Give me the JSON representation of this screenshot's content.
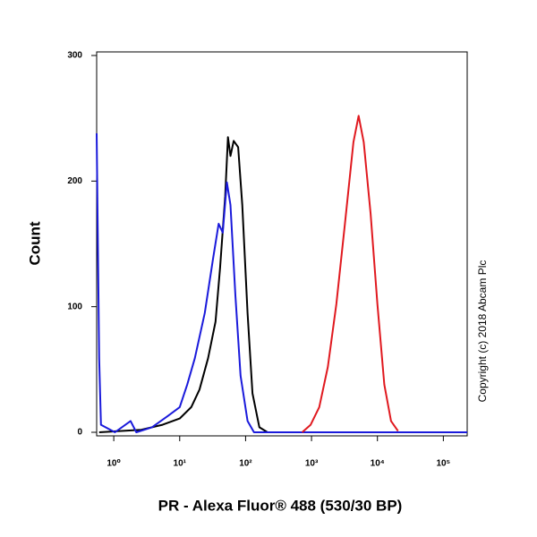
{
  "chart_data": {
    "type": "line",
    "x_label": "PR - Alexa Fluor® 488 (530/30 BP)",
    "y_label": "Count",
    "annotation": "Copyright (c) 2018 Abcam Plc",
    "log_x": true,
    "xlim": [
      0.55,
      230000
    ],
    "ylim": [
      0,
      300
    ],
    "xticks": [
      {
        "value": 1,
        "label": "10⁰"
      },
      {
        "value": 10,
        "label": "10¹"
      },
      {
        "value": 100,
        "label": "10²"
      },
      {
        "value": 1000,
        "label": "10³"
      },
      {
        "value": 10000,
        "label": "10⁴"
      },
      {
        "value": 100000,
        "label": "10⁵"
      }
    ],
    "yticks": [
      0,
      100,
      200,
      300
    ],
    "series": [
      {
        "color": "#000000",
        "x": [
          0.6,
          2.6,
          5.5,
          10,
          15,
          20,
          27,
          35,
          41,
          49,
          54,
          59,
          66,
          77,
          89,
          107,
          127,
          162,
          215,
          230000
        ],
        "values": [
          0,
          2,
          6,
          11,
          20,
          34,
          59,
          88,
          131,
          188,
          235,
          220,
          232,
          227,
          181,
          95,
          31,
          4,
          0,
          0
        ]
      },
      {
        "color": "#1a1adb",
        "x": [
          0.55,
          0.6,
          0.64,
          1.04,
          1.8,
          2.2,
          3.8,
          6.6,
          10,
          13,
          17,
          24,
          32,
          39,
          45,
          52,
          59,
          70,
          84,
          107,
          134,
          230000
        ],
        "values": [
          238,
          59,
          6,
          0,
          9,
          0,
          4,
          13,
          20,
          38,
          59,
          95,
          138,
          166,
          159,
          199,
          181,
          109,
          45,
          9,
          0,
          0
        ]
      },
      {
        "color": "#e0191f",
        "x": [
          720,
          970,
          1310,
          1770,
          2380,
          3210,
          4330,
          5180,
          6190,
          7870,
          10000,
          12700,
          16100,
          20500
        ],
        "values": [
          0,
          6,
          20,
          52,
          102,
          166,
          231,
          252,
          231,
          174,
          102,
          38,
          9,
          1
        ]
      }
    ]
  }
}
